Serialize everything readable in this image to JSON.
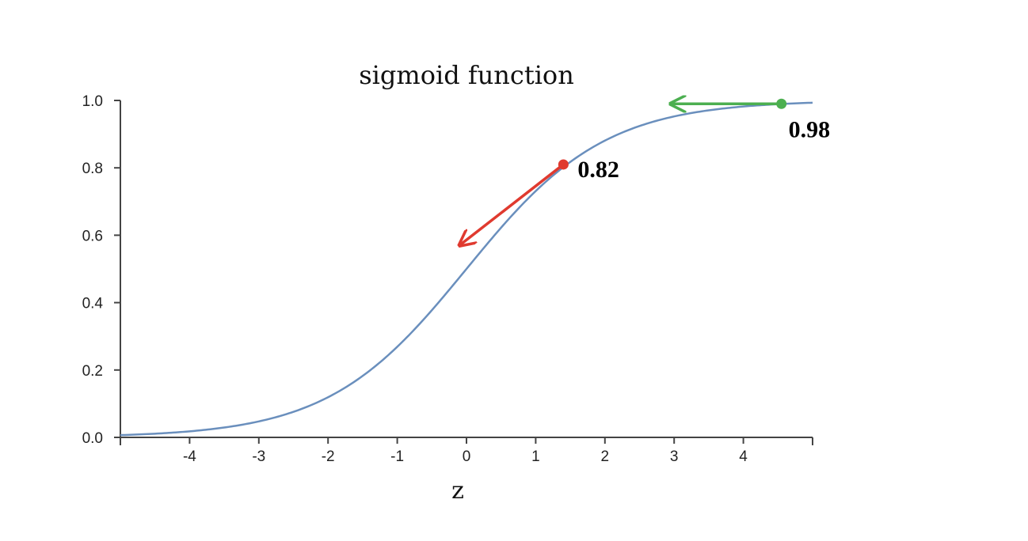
{
  "chart_data": {
    "type": "line",
    "title": "sigmoid function",
    "xlabel": "z",
    "ylabel": "",
    "xlim": [
      -5,
      5
    ],
    "ylim": [
      0,
      1
    ],
    "x_ticks": [
      -4,
      -3,
      -2,
      -1,
      0,
      1,
      2,
      3,
      4
    ],
    "y_ticks": [
      "0.0",
      "0.2",
      "0.4",
      "0.6",
      "0.8",
      "1.0"
    ],
    "grid": false,
    "series": [
      {
        "function": "sigmoid",
        "x_range": [
          -5,
          5
        ],
        "color": "#6a8fbd"
      }
    ],
    "annotations": [
      {
        "label": "0.82",
        "x": 1.4,
        "y": 0.81,
        "arrow_to": [
          -0.1,
          0.57
        ],
        "color": "#e03a2f"
      },
      {
        "label": "0.98",
        "x": 4.55,
        "y": 0.99,
        "arrow_to": [
          2.95,
          0.99
        ],
        "color": "#4caf50"
      }
    ]
  }
}
